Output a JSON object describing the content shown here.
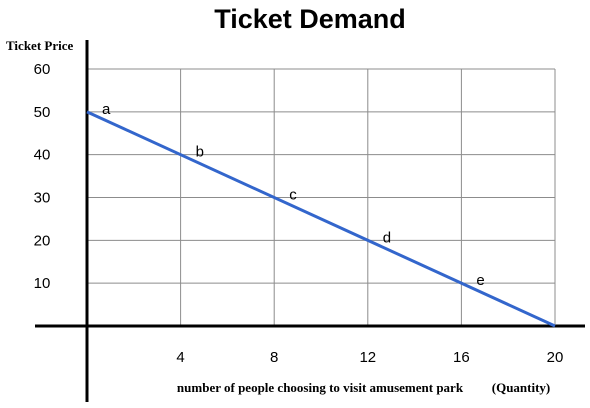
{
  "chart_data": {
    "type": "line",
    "title": "Ticket Demand",
    "ylabel": "Ticket Price",
    "xlabel": "number of people choosing to visit amusement park",
    "xlabel_suffix": "(Quantity)",
    "xlim": [
      0,
      20
    ],
    "ylim": [
      0,
      60
    ],
    "x_ticks": [
      4,
      8,
      12,
      16,
      20
    ],
    "y_ticks": [
      10,
      20,
      30,
      40,
      50,
      60
    ],
    "grid": true,
    "series": [
      {
        "x": [
          0,
          20
        ],
        "y": [
          50,
          0
        ],
        "color": "#3366cc"
      }
    ],
    "points": [
      {
        "label": "a",
        "x": 0,
        "y": 50
      },
      {
        "label": "b",
        "x": 4,
        "y": 40
      },
      {
        "label": "c",
        "x": 8,
        "y": 30
      },
      {
        "label": "d",
        "x": 12,
        "y": 20
      },
      {
        "label": "e",
        "x": 16,
        "y": 10
      }
    ]
  }
}
